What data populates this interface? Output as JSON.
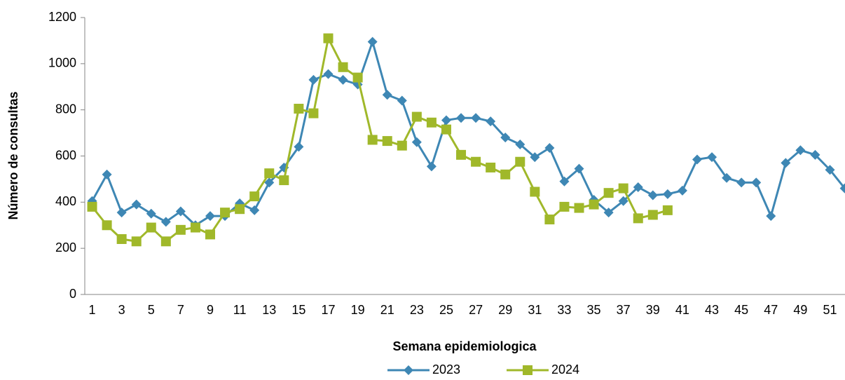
{
  "chart_data": {
    "type": "line",
    "x_label": "Semana epidemiologica",
    "y_label": "Número de consultas",
    "categories": [
      "1",
      null,
      "3",
      null,
      "5",
      null,
      "7",
      null,
      "9",
      null,
      "11",
      null,
      "13",
      null,
      "15",
      null,
      "17",
      null,
      "19",
      null,
      "21",
      null,
      "23",
      null,
      "25",
      null,
      "27",
      null,
      "29",
      null,
      "31",
      null,
      "33",
      null,
      "35",
      null,
      "37",
      null,
      "39",
      null,
      "41",
      null,
      "43",
      null,
      "45",
      null,
      "47",
      null,
      "49",
      null,
      "51",
      null
    ],
    "series": [
      {
        "name": "2023",
        "color": "#3e87b4",
        "marker": "diamond",
        "values": [
          405,
          520,
          355,
          390,
          350,
          315,
          360,
          300,
          340,
          340,
          395,
          365,
          485,
          550,
          640,
          930,
          955,
          930,
          910,
          1095,
          865,
          840,
          660,
          555,
          755,
          765,
          765,
          750,
          680,
          650,
          595,
          635,
          490,
          545,
          410,
          355,
          405,
          465,
          430,
          435,
          450,
          585,
          595,
          505,
          485,
          485,
          340,
          570,
          625,
          605,
          540,
          460
        ]
      },
      {
        "name": "2024",
        "color": "#a0b82a",
        "marker": "square",
        "values": [
          380,
          300,
          240,
          230,
          290,
          230,
          280,
          290,
          260,
          355,
          370,
          425,
          525,
          495,
          805,
          785,
          1110,
          985,
          940,
          670,
          665,
          645,
          770,
          745,
          715,
          605,
          575,
          550,
          520,
          575,
          445,
          325,
          380,
          375,
          390,
          440,
          460,
          330,
          345,
          365,
          null,
          null,
          null,
          null,
          null,
          null,
          null,
          null,
          null,
          null,
          null,
          null
        ]
      }
    ],
    "ylim": [
      0,
      1200
    ],
    "yticks": [
      0,
      200,
      400,
      600,
      800,
      1000,
      1200
    ],
    "legend": "bottom"
  }
}
